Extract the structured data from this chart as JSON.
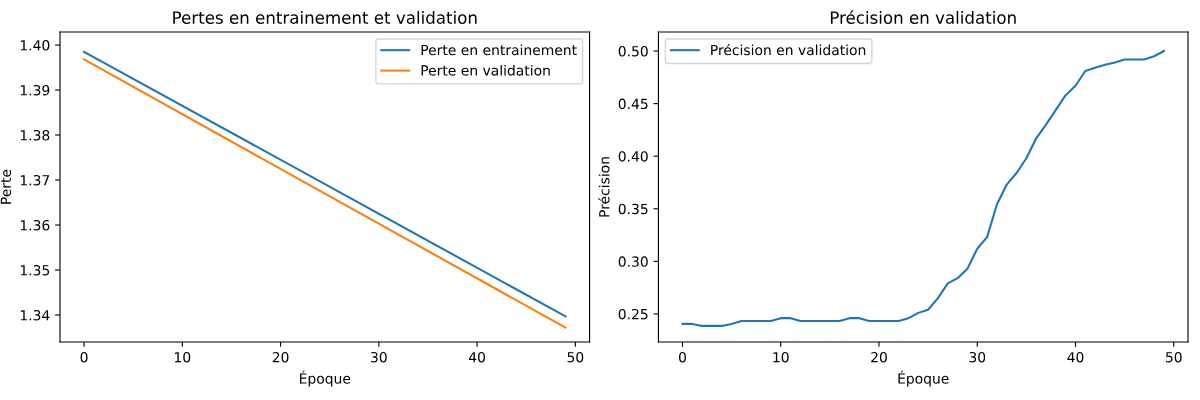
{
  "chart_data": [
    {
      "type": "line",
      "title": "Pertes en entrainement et validation",
      "xlabel": "Époque",
      "ylabel": "Perte",
      "xlim": [
        -2.45,
        51.45
      ],
      "xticks": [
        0,
        10,
        20,
        30,
        40,
        50
      ],
      "ylim": [
        1.334,
        1.4029
      ],
      "yticks": [
        {
          "value": 1.34,
          "label": "1.34"
        },
        {
          "value": 1.35,
          "label": "1.35"
        },
        {
          "value": 1.36,
          "label": "1.36"
        },
        {
          "value": 1.37,
          "label": "1.37"
        },
        {
          "value": 1.38,
          "label": "1.38"
        },
        {
          "value": 1.39,
          "label": "1.39"
        },
        {
          "value": 1.4,
          "label": "1.40"
        }
      ],
      "legend": "top right",
      "grid": false,
      "series": [
        {
          "name": "Perte en entrainement",
          "color": "#1f77b4",
          "x": [
            0,
            49
          ],
          "values": [
            1.3985,
            1.3397
          ]
        },
        {
          "name": "Perte en validation",
          "color": "#ff7f0e",
          "x": [
            0,
            49
          ],
          "values": [
            1.3968,
            1.3372
          ]
        }
      ]
    },
    {
      "type": "line",
      "title": "Précision en validation",
      "xlabel": "Époque",
      "ylabel": "Précision",
      "xlim": [
        -2.45,
        51.45
      ],
      "xticks": [
        0,
        10,
        20,
        30,
        40,
        50
      ],
      "ylim": [
        0.2233,
        0.5181
      ],
      "yticks": [
        {
          "value": 0.25,
          "label": "0.25"
        },
        {
          "value": 0.3,
          "label": "0.30"
        },
        {
          "value": 0.35,
          "label": "0.35"
        },
        {
          "value": 0.4,
          "label": "0.40"
        },
        {
          "value": 0.45,
          "label": "0.45"
        },
        {
          "value": 0.5,
          "label": "0.50"
        }
      ],
      "legend": "top left",
      "grid": false,
      "series": [
        {
          "name": "Précision en validation",
          "color": "#1f77b4",
          "x": [
            0,
            1,
            2,
            3,
            4,
            5,
            6,
            7,
            8,
            9,
            10,
            11,
            12,
            13,
            14,
            15,
            16,
            17,
            18,
            19,
            20,
            21,
            22,
            23,
            24,
            25,
            26,
            27,
            28,
            29,
            30,
            31,
            32,
            33,
            34,
            35,
            36,
            37,
            38,
            39,
            40,
            41,
            42,
            43,
            44,
            45,
            46,
            47,
            48,
            49
          ],
          "values": [
            0.2405,
            0.2405,
            0.2386,
            0.2386,
            0.2386,
            0.2405,
            0.2433,
            0.2433,
            0.2433,
            0.2433,
            0.246,
            0.246,
            0.2433,
            0.2433,
            0.2433,
            0.2433,
            0.2433,
            0.246,
            0.246,
            0.2433,
            0.2433,
            0.2433,
            0.2433,
            0.246,
            0.251,
            0.254,
            0.265,
            0.279,
            0.284,
            0.293,
            0.312,
            0.323,
            0.354,
            0.373,
            0.384,
            0.398,
            0.417,
            0.43,
            0.444,
            0.458,
            0.467,
            0.481,
            0.484,
            0.487,
            0.489,
            0.492,
            0.492,
            0.492,
            0.495,
            0.5
          ]
        }
      ]
    }
  ]
}
